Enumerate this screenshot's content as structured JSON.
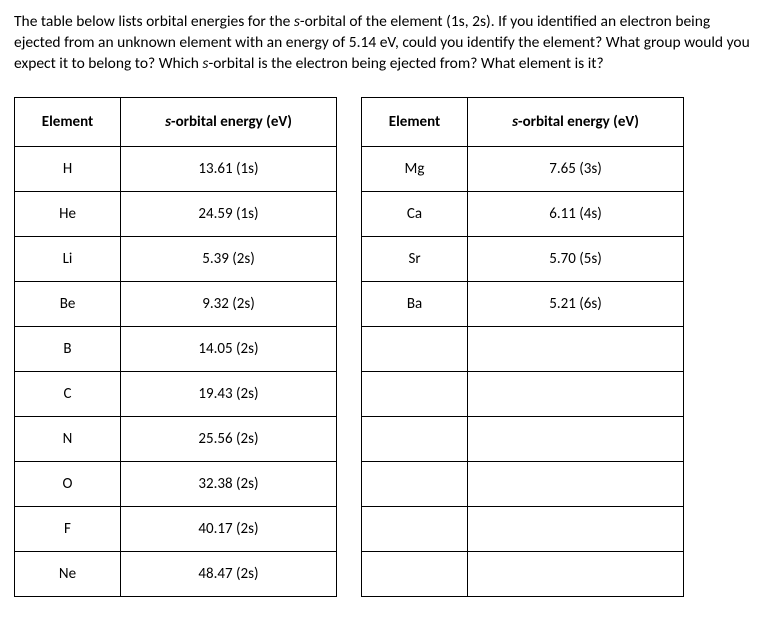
{
  "question": {
    "t1": "The table below lists orbital energies for the ",
    "italic1": "s",
    "t2": "-orbital of the element (1s, 2s).  If you identified an electron being ejected from an unknown element with an energy of 5.14 eV, could you identify the element?  What group would you expect it to belong to?  Which ",
    "italic2": "s",
    "t3": "-orbital is the electron being ejected from?  What element is it?"
  },
  "headers": {
    "element": "Element",
    "energy_prefix_italic": "s",
    "energy_rest": "-orbital energy (eV)"
  },
  "left": [
    {
      "el": "H",
      "en": "13.61 (1s)"
    },
    {
      "el": "He",
      "en": "24.59 (1s)"
    },
    {
      "el": "Li",
      "en": "5.39 (2s)"
    },
    {
      "el": "Be",
      "en": "9.32 (2s)"
    },
    {
      "el": "B",
      "en": "14.05 (2s)"
    },
    {
      "el": "C",
      "en": "19.43 (2s)"
    },
    {
      "el": "N",
      "en": "25.56 (2s)"
    },
    {
      "el": "O",
      "en": "32.38 (2s)"
    },
    {
      "el": "F",
      "en": "40.17 (2s)"
    },
    {
      "el": "Ne",
      "en": "48.47 (2s)"
    }
  ],
  "right": [
    {
      "el": "Mg",
      "en": "7.65 (3s)"
    },
    {
      "el": "Ca",
      "en": "6.11 (4s)"
    },
    {
      "el": "Sr",
      "en": "5.70 (5s)"
    },
    {
      "el": "Ba",
      "en": "5.21 (6s)"
    },
    {
      "el": "",
      "en": ""
    },
    {
      "el": "",
      "en": ""
    },
    {
      "el": "",
      "en": ""
    },
    {
      "el": "",
      "en": ""
    },
    {
      "el": "",
      "en": ""
    },
    {
      "el": "",
      "en": ""
    }
  ],
  "style": {
    "row_count": 10,
    "border_color": "#000000",
    "background_color": "#ffffff",
    "font_size_body": 15.5,
    "font_size_table": 15
  }
}
